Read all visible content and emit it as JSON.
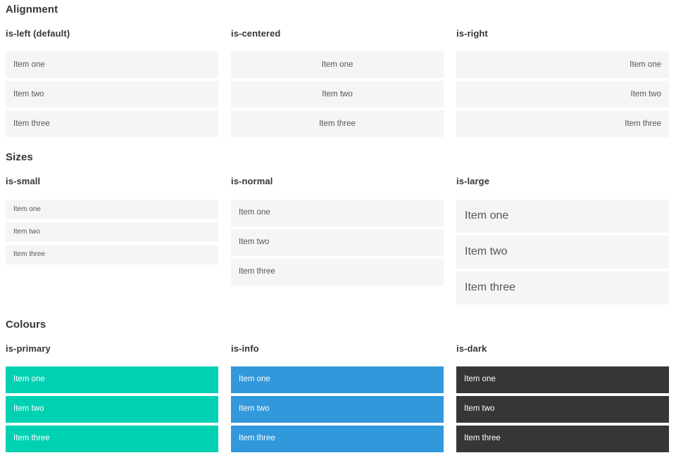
{
  "colors": {
    "primary": "#00d1b2",
    "info": "#3298dc",
    "dark": "#363636",
    "item_bg": "#f5f5f5",
    "item_text": "#555555",
    "heading": "#363636"
  },
  "sections": [
    {
      "title": "Alignment",
      "groups": [
        {
          "label": "is-left (default)",
          "variant": "align-left",
          "items": [
            "Item one",
            "Item two",
            "Item three"
          ]
        },
        {
          "label": "is-centered",
          "variant": "align-centered",
          "items": [
            "Item one",
            "Item two",
            "Item three"
          ]
        },
        {
          "label": "is-right",
          "variant": "align-right",
          "items": [
            "Item one",
            "Item two",
            "Item three"
          ]
        }
      ]
    },
    {
      "title": "Sizes",
      "groups": [
        {
          "label": "is-small",
          "variant": "size-small",
          "items": [
            "Item one",
            "Item two",
            "Item three"
          ]
        },
        {
          "label": "is-normal",
          "variant": "size-normal",
          "items": [
            "Item one",
            "Item two",
            "Item three"
          ]
        },
        {
          "label": "is-large",
          "variant": "size-large",
          "items": [
            "Item one",
            "Item two",
            "Item three"
          ]
        }
      ]
    },
    {
      "title": "Colours",
      "groups": [
        {
          "label": "is-primary",
          "variant": "color-primary",
          "items": [
            "Item one",
            "Item two",
            "Item three"
          ]
        },
        {
          "label": "is-info",
          "variant": "color-info",
          "items": [
            "Item one",
            "Item two",
            "Item three"
          ]
        },
        {
          "label": "is-dark",
          "variant": "color-dark",
          "items": [
            "Item one",
            "Item two",
            "Item three"
          ]
        }
      ]
    }
  ]
}
